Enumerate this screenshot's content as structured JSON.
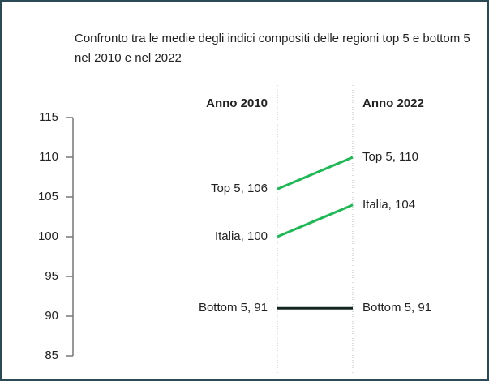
{
  "chart_data": {
    "type": "slope",
    "title": "Confronto tra le medie degli indici compositi delle regioni top 5 e bottom 5 nel 2010 e nel 2022",
    "categories": [
      "Anno 2010",
      "Anno 2022"
    ],
    "series": [
      {
        "color": "#1db954",
        "values": [
          106,
          110
        ],
        "value_labels": [
          "Top 5, 106",
          "Top 5, 110"
        ]
      },
      {
        "color": "#1db954",
        "values": [
          100,
          104
        ],
        "value_labels": [
          "Italia, 100",
          "Italia, 104"
        ]
      },
      {
        "color": "#14271f",
        "values": [
          91,
          91
        ],
        "value_labels": [
          "Bottom 5, 91",
          "Bottom 5, 91"
        ]
      }
    ],
    "ylim": [
      85,
      115
    ],
    "yticks": [
      85,
      90,
      95,
      100,
      105,
      110,
      115
    ]
  }
}
